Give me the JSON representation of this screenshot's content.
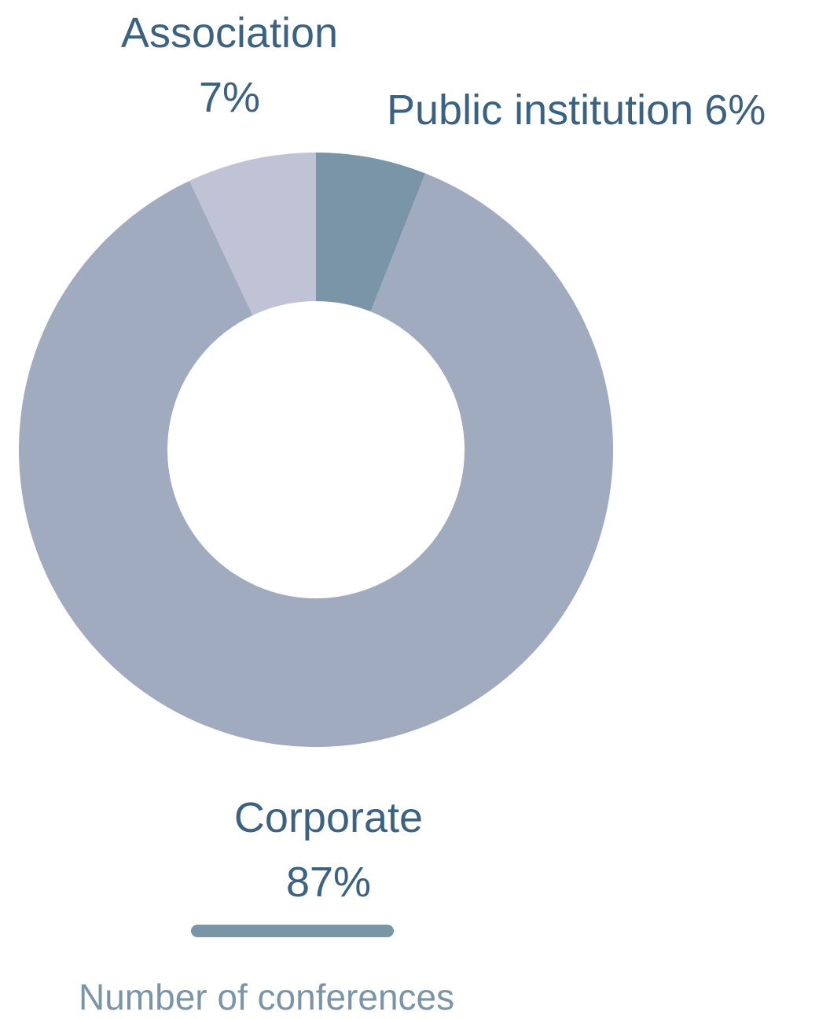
{
  "chart_data": {
    "type": "donut",
    "categories": [
      "Public institution",
      "Corporate",
      "Association"
    ],
    "values": [
      6,
      87,
      7
    ],
    "value_labels": [
      "6%",
      "87%",
      "7%"
    ],
    "colors": [
      "#7a94a8",
      "#a0abc0",
      "#c0c2d6"
    ],
    "caption": "Number of conferences"
  }
}
